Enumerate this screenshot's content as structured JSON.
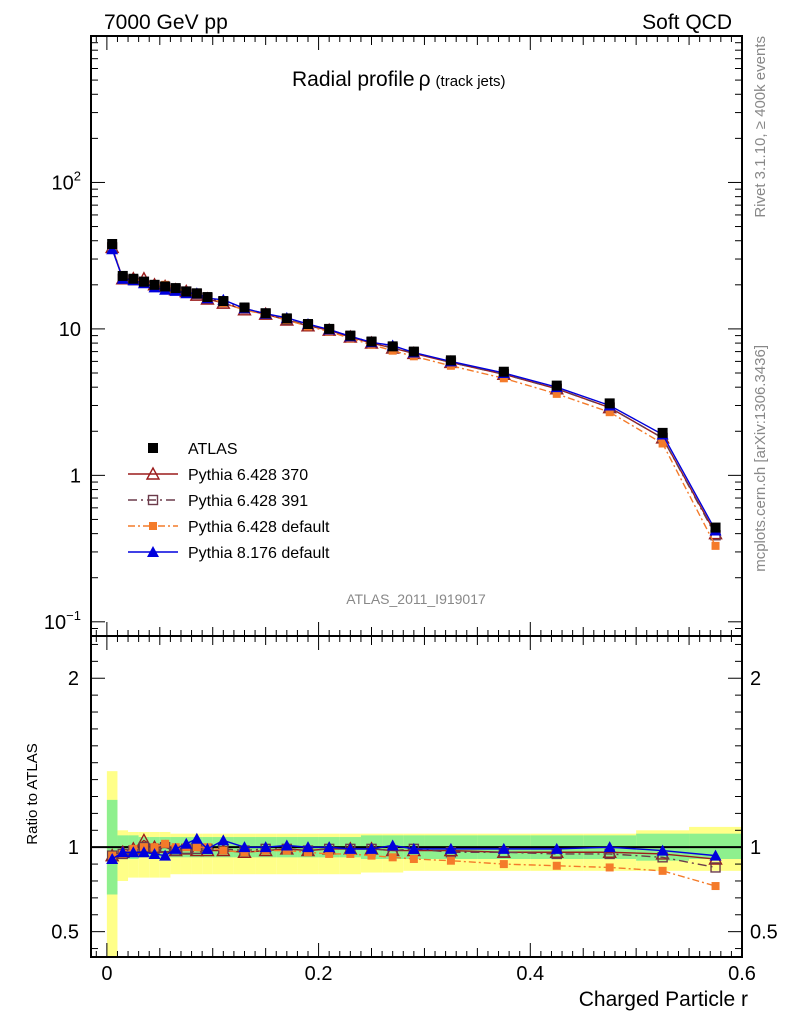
{
  "header": {
    "left": "7000 GeV pp",
    "right": "Soft QCD"
  },
  "title": {
    "main": "Radial profile",
    "symbol": "ρ",
    "sub": "(track jets)"
  },
  "side": {
    "version": "Rivet 3.1.10, ≥ 400k events",
    "source": "mcplots.cern.ch [arXiv:1306.3436]"
  },
  "analysis_id": "ATLAS_2011_I919017",
  "colors": {
    "atlas": "#000000",
    "p370": "#9b1c1c",
    "p391": "#6b3b4b",
    "pdef": "#f47b2a",
    "p8": "#0000dd",
    "band_inner": "#8ef08e",
    "band_outer": "#ffff88"
  },
  "chart_data": [
    {
      "type": "line",
      "title": "Radial profile ρ (track jets)",
      "xlabel": "Charged Particle r",
      "ylabel": "",
      "log_y": true,
      "xlim": [
        -0.015,
        0.6
      ],
      "ylim": [
        0.08,
        1000
      ],
      "yticks": [
        {
          "value": 0.1,
          "base": "10",
          "exp": "−1"
        },
        {
          "value": 1,
          "base": "1",
          "exp": ""
        },
        {
          "value": 10,
          "base": "10",
          "exp": ""
        },
        {
          "value": 100,
          "base": "10",
          "exp": "2"
        }
      ],
      "x": [
        0.005,
        0.015,
        0.025,
        0.035,
        0.045,
        0.055,
        0.065,
        0.075,
        0.085,
        0.095,
        0.11,
        0.13,
        0.15,
        0.17,
        0.19,
        0.21,
        0.23,
        0.25,
        0.27,
        0.29,
        0.325,
        0.375,
        0.425,
        0.475,
        0.525,
        0.575
      ],
      "legend": {
        "position": "lower-left"
      },
      "series": [
        {
          "name": "ATLAS",
          "marker": "square-filled",
          "color": "#000000",
          "values": [
            38,
            23,
            22,
            21,
            20,
            19.5,
            19,
            18,
            17.5,
            16.5,
            15.5,
            14,
            12.8,
            11.8,
            10.8,
            10,
            9,
            8.2,
            7.6,
            7.0,
            6.1,
            5.1,
            4.1,
            3.1,
            1.95,
            0.44
          ]
        },
        {
          "name": "Pythia 6.428 370",
          "marker": "triangle-open",
          "color": "#9b1c1c",
          "dash": "",
          "values": [
            36,
            22,
            22,
            22,
            20,
            19.5,
            18.5,
            18,
            17,
            16,
            15,
            13.5,
            12.6,
            11.5,
            10.5,
            9.8,
            8.8,
            8,
            7.4,
            6.8,
            5.9,
            4.9,
            3.9,
            2.9,
            1.8,
            0.4
          ]
        },
        {
          "name": "Pythia 6.428 391",
          "marker": "square-open",
          "color": "#6b3b4b",
          "dash": "9,4,2,4",
          "values": [
            36,
            22,
            21.5,
            21,
            19.8,
            19.3,
            18.5,
            18,
            17.3,
            16.2,
            15.3,
            13.8,
            12.7,
            11.6,
            10.6,
            9.9,
            8.9,
            8.1,
            7.4,
            6.9,
            5.9,
            4.9,
            3.9,
            2.9,
            1.8,
            0.39
          ]
        },
        {
          "name": "Pythia 6.428 default",
          "marker": "square-filled-small",
          "color": "#f47b2a",
          "dash": "7,3,2,3",
          "values": [
            36,
            22,
            22,
            21,
            20,
            20,
            19,
            18,
            17.5,
            16.5,
            15,
            13.5,
            12.5,
            11.5,
            10.4,
            9.6,
            8.6,
            7.8,
            7.1,
            6.5,
            5.6,
            4.6,
            3.6,
            2.7,
            1.65,
            0.33
          ]
        },
        {
          "name": "Pythia 8.176 default",
          "marker": "triangle-filled",
          "color": "#0000dd",
          "dash": "",
          "values": [
            35,
            22,
            21.5,
            20.5,
            19.2,
            18.5,
            18.2,
            17.5,
            17.5,
            16.2,
            15.8,
            13.8,
            12.7,
            11.9,
            10.8,
            9.9,
            8.9,
            8.1,
            7.7,
            6.9,
            6.0,
            5.0,
            4.0,
            3.0,
            1.9,
            0.42
          ]
        }
      ]
    },
    {
      "type": "line",
      "title": "",
      "xlabel": "Charged Particle r",
      "ylabel": "Ratio to ATLAS",
      "xlim": [
        -0.015,
        0.6
      ],
      "ylim": [
        0.35,
        2.25
      ],
      "x": [
        0.005,
        0.015,
        0.025,
        0.035,
        0.045,
        0.055,
        0.065,
        0.075,
        0.085,
        0.095,
        0.11,
        0.13,
        0.15,
        0.17,
        0.19,
        0.21,
        0.23,
        0.25,
        0.27,
        0.29,
        0.325,
        0.375,
        0.425,
        0.475,
        0.525,
        0.575
      ],
      "bin_edges": [
        0,
        0.01,
        0.02,
        0.03,
        0.04,
        0.05,
        0.06,
        0.07,
        0.08,
        0.09,
        0.1,
        0.12,
        0.14,
        0.16,
        0.18,
        0.2,
        0.22,
        0.24,
        0.26,
        0.28,
        0.3,
        0.35,
        0.4,
        0.45,
        0.5,
        0.55,
        0.6
      ],
      "yticks": [
        0.5,
        1,
        2
      ],
      "band_inner": [
        [
          0.72,
          1.28
        ],
        [
          0.93,
          1.07
        ],
        [
          0.93,
          1.07
        ],
        [
          0.94,
          1.06
        ],
        [
          0.94,
          1.06
        ],
        [
          0.94,
          1.06
        ],
        [
          0.94,
          1.06
        ],
        [
          0.94,
          1.06
        ],
        [
          0.94,
          1.06
        ],
        [
          0.94,
          1.06
        ],
        [
          0.94,
          1.06
        ],
        [
          0.94,
          1.06
        ],
        [
          0.94,
          1.06
        ],
        [
          0.94,
          1.06
        ],
        [
          0.94,
          1.06
        ],
        [
          0.94,
          1.06
        ],
        [
          0.94,
          1.06
        ],
        [
          0.93,
          1.07
        ],
        [
          0.93,
          1.07
        ],
        [
          0.93,
          1.07
        ],
        [
          0.93,
          1.07
        ],
        [
          0.93,
          1.07
        ],
        [
          0.93,
          1.07
        ],
        [
          0.93,
          1.07
        ],
        [
          0.92,
          1.08
        ],
        [
          0.93,
          1.08
        ]
      ],
      "band_outer": [
        [
          0.3,
          1.45
        ],
        [
          0.8,
          1.1
        ],
        [
          0.82,
          1.09
        ],
        [
          0.82,
          1.09
        ],
        [
          0.82,
          1.09
        ],
        [
          0.82,
          1.09
        ],
        [
          0.84,
          1.08
        ],
        [
          0.84,
          1.08
        ],
        [
          0.84,
          1.08
        ],
        [
          0.84,
          1.08
        ],
        [
          0.84,
          1.08
        ],
        [
          0.84,
          1.08
        ],
        [
          0.84,
          1.08
        ],
        [
          0.84,
          1.08
        ],
        [
          0.84,
          1.08
        ],
        [
          0.84,
          1.08
        ],
        [
          0.84,
          1.08
        ],
        [
          0.85,
          1.08
        ],
        [
          0.85,
          1.08
        ],
        [
          0.86,
          1.08
        ],
        [
          0.86,
          1.08
        ],
        [
          0.86,
          1.08
        ],
        [
          0.86,
          1.08
        ],
        [
          0.86,
          1.08
        ],
        [
          0.86,
          1.1
        ],
        [
          0.86,
          1.12
        ]
      ],
      "series": [
        {
          "name": "Pythia 6.428 370",
          "color": "#9b1c1c",
          "dash": "",
          "marker": "triangle-open",
          "values": [
            0.95,
            0.97,
            0.99,
            1.04,
            1.0,
            1.0,
            0.98,
            0.99,
            0.98,
            0.98,
            0.98,
            0.97,
            0.98,
            0.99,
            0.98,
            0.99,
            0.99,
            0.99,
            0.98,
            0.98,
            0.98,
            0.97,
            0.97,
            0.97,
            0.96,
            0.93
          ]
        },
        {
          "name": "Pythia 6.428 391",
          "color": "#6b3b4b",
          "dash": "9,4,2,4",
          "marker": "square-open",
          "values": [
            0.95,
            0.96,
            0.98,
            1.0,
            0.99,
            1.0,
            0.98,
            0.99,
            0.99,
            0.99,
            0.99,
            0.98,
            0.99,
            0.99,
            0.98,
            0.99,
            0.99,
            0.99,
            0.98,
            0.99,
            0.97,
            0.97,
            0.96,
            0.96,
            0.94,
            0.88
          ]
        },
        {
          "name": "Pythia 6.428 default",
          "color": "#f47b2a",
          "dash": "7,3,2,3",
          "marker": "square-filled-small",
          "values": [
            0.95,
            0.96,
            0.99,
            1.0,
            1.0,
            1.02,
            1.0,
            1.0,
            1.0,
            1.0,
            0.98,
            0.97,
            0.98,
            0.98,
            0.97,
            0.96,
            0.96,
            0.95,
            0.94,
            0.93,
            0.92,
            0.9,
            0.89,
            0.88,
            0.86,
            0.77
          ]
        },
        {
          "name": "Pythia 8.176 default",
          "color": "#0000dd",
          "dash": "",
          "marker": "triangle-filled",
          "values": [
            0.93,
            0.97,
            0.97,
            0.97,
            0.96,
            0.95,
            0.99,
            1.02,
            1.05,
            0.99,
            1.04,
            1.0,
            1.0,
            1.01,
            1.0,
            1.0,
            0.99,
            0.99,
            1.01,
            0.99,
            0.99,
            0.99,
            0.99,
            1.0,
            0.98,
            0.95
          ]
        }
      ]
    }
  ]
}
